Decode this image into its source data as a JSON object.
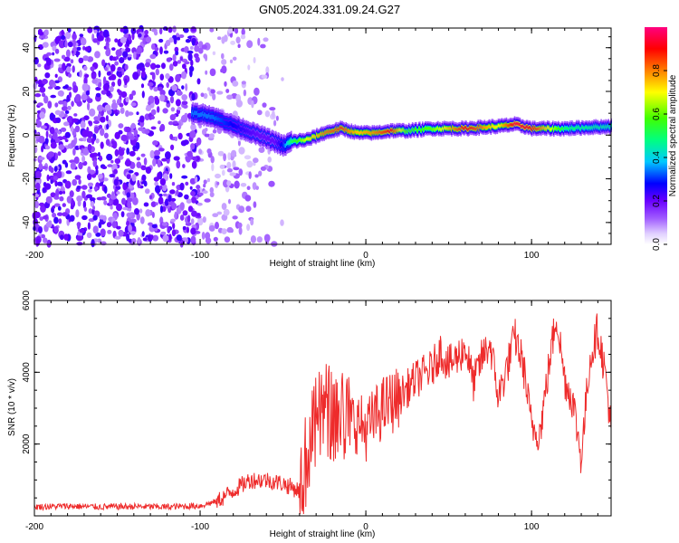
{
  "title": "GN05.2024.331.09.24.G27",
  "chart_data": [
    {
      "type": "heatmap",
      "xlabel": "Height of straight line (km)",
      "ylabel": "Frequency (Hz)",
      "xlim": [
        -200,
        148
      ],
      "ylim": [
        -50,
        49
      ],
      "xticks": [
        -200,
        -100,
        0,
        100
      ],
      "yticks": [
        -40,
        -20,
        0,
        20,
        40
      ],
      "colorbar": {
        "label": "Normalized spectral amplitude",
        "range": [
          0,
          1
        ],
        "ticks": [
          0.0,
          0.2,
          0.4,
          0.6,
          0.8
        ],
        "tick_labels": [
          "0.0",
          "0.2",
          "0.4",
          "0.6",
          "0.8"
        ],
        "colors": [
          "#ffffff",
          "#b489ff",
          "#7a00ff",
          "#0000ff",
          "#00d6ff",
          "#00ff7a",
          "#6dff00",
          "#ffff00",
          "#ff8a00",
          "#ff0000",
          "#ff0080"
        ]
      },
      "noise_region_x": [
        -200,
        -50
      ],
      "track": {
        "x": [
          -105,
          -95,
          -85,
          -75,
          -65,
          -55,
          -50,
          -45,
          -35,
          -25,
          -15,
          -5,
          5,
          15,
          25,
          40,
          60,
          80,
          90,
          100,
          120,
          148
        ],
        "freq": [
          10,
          9,
          6,
          3,
          0,
          -3,
          -5,
          -3,
          -2,
          1,
          3,
          1,
          1,
          2,
          2,
          3,
          3,
          4,
          5,
          3,
          3,
          4
        ],
        "amplitude": [
          0.35,
          0.35,
          0.3,
          0.25,
          0.2,
          0.2,
          0.3,
          0.5,
          0.7,
          0.8,
          0.85,
          0.75,
          0.8,
          0.9,
          0.55,
          0.6,
          0.9,
          0.7,
          0.95,
          0.9,
          0.5,
          0.45
        ]
      }
    },
    {
      "type": "line",
      "xlabel": "Height of straight line (km)",
      "ylabel": "SNR (10 * v/v)",
      "xlim": [
        -200,
        148
      ],
      "ylim": [
        0,
        6000
      ],
      "xticks": [
        -200,
        -100,
        0,
        100
      ],
      "yticks": [
        2000,
        4000,
        6000
      ],
      "color": "#ee2b2b",
      "series": [
        {
          "x": [
            -200,
            -180,
            -160,
            -140,
            -120,
            -100,
            -90,
            -80,
            -70,
            -60,
            -50,
            -40,
            -35,
            -30,
            -25,
            -20,
            -15,
            -10,
            -5,
            0,
            10,
            20,
            30,
            40,
            45,
            50,
            55,
            60,
            65,
            70,
            75,
            80,
            85,
            90,
            95,
            100,
            105,
            110,
            115,
            120,
            125,
            130,
            135,
            140,
            145,
            148
          ],
          "y": [
            250,
            270,
            250,
            260,
            250,
            280,
            400,
            700,
            1000,
            1000,
            900,
            700,
            1800,
            2500,
            3000,
            2800,
            2800,
            2700,
            2600,
            2400,
            3000,
            3300,
            3800,
            4100,
            4600,
            4200,
            4400,
            4700,
            3700,
            4400,
            4800,
            3300,
            4100,
            5000,
            4200,
            2500,
            2300,
            4000,
            5600,
            3800,
            3200,
            1600,
            4300,
            5200,
            3800,
            2400
          ]
        }
      ]
    }
  ]
}
